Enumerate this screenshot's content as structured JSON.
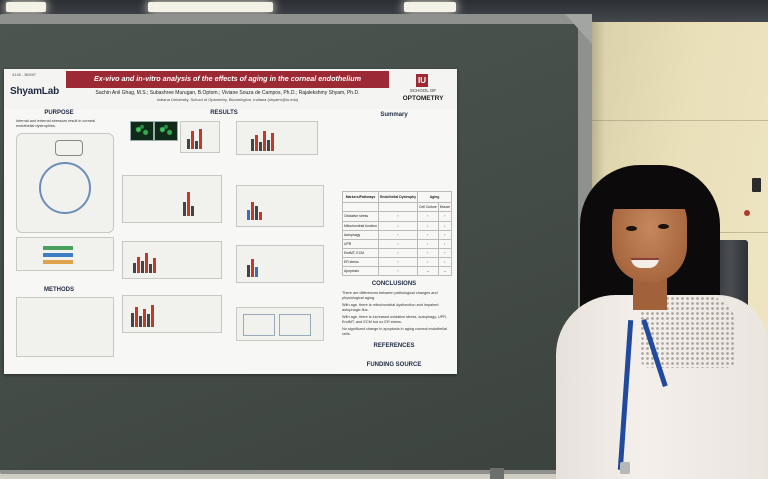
{
  "poster": {
    "poster_id": "4145 - B0597",
    "lab_logo": "ShyamLab",
    "title": "Ex-vivo and in-vitro analysis of the effects of aging in the corneal endothelium",
    "authors": "Sachin Anil Ghag, M.S.; Subashree Murugan, B.Optom.; Viviane Souza de Campos, Ph.D.; Rajalekshmy Shyam, Ph.D.",
    "affiliation": "Indiana University, School of Optometry, Bloomington, Indiana (shyamr@iu.edu)",
    "school_mark": "IU",
    "school_label": "SCHOOL OF",
    "school_name": "OPTOMETRY",
    "sections": {
      "purpose": "PURPOSE",
      "results": "RESULTS",
      "summary": "Summary",
      "conclusions": "CONCLUSIONS",
      "methods": "METHODS",
      "references": "REFERENCES",
      "funding": "FUNDING SOURCE"
    },
    "purpose_text": "Internal and external stressors result in corneal endothelial dystrophies.",
    "conclusion_items": [
      "There are differences between pathological changes and physiological aging.",
      "With age, there is mitochondrial dysfunction and impaired autophagic flux.",
      "With age, there is increased oxidative stress, autophagy, UPR, EndMT, and ECM but no ER stress.",
      "No significant change in apoptosis in aging corneal endothelial cells."
    ],
    "summary_table": {
      "headers": [
        "Markers/Pathways",
        "Endothelial Dystrophy",
        "Cell Culture",
        "Mouse"
      ],
      "group_header": "Aging",
      "rows": [
        "Oxidative stress",
        "Mitochondrial function",
        "Autophagy",
        "UPR",
        "EndMT, ECM",
        "ER stress",
        "Apoptosis"
      ]
    }
  }
}
